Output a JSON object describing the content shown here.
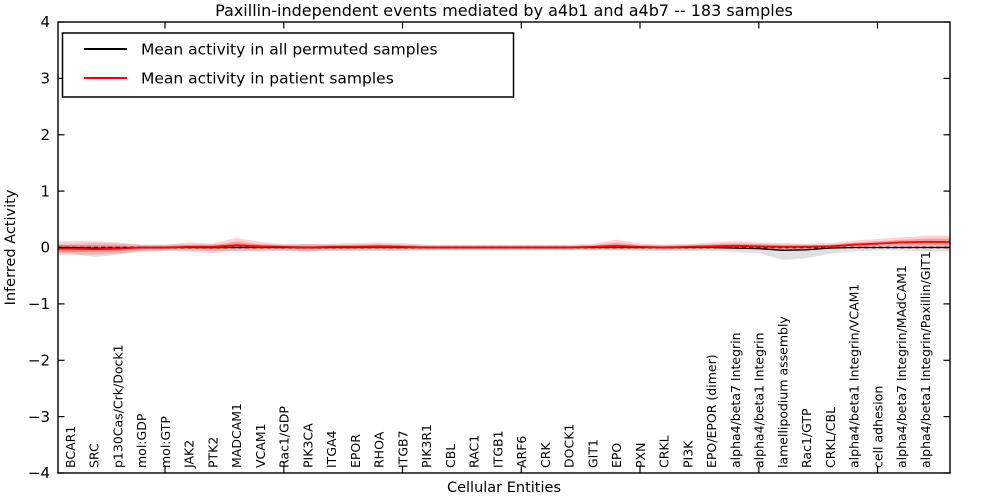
{
  "figure": {
    "title": "Paxillin-independent events mediated by a4b1 and a4b7 -- 183 samples",
    "xlabel": "Cellular Entities",
    "ylabel": "Inferred Activity"
  },
  "chart_data": {
    "type": "line",
    "title": "Paxillin-independent events mediated by a4b1 and a4b7 -- 183 samples",
    "xlabel": "Cellular Entities",
    "ylabel": "Inferred Activity",
    "ylim": [
      -4,
      4
    ],
    "ytick_labels": [
      "4",
      "3",
      "2",
      "1",
      "0",
      "−1",
      "−2",
      "−3",
      "−4"
    ],
    "ytick_values": [
      4,
      3,
      2,
      1,
      0,
      -1,
      -2,
      -3,
      -4
    ],
    "xtick_entity_indices": [
      4,
      9,
      14,
      19,
      24,
      29,
      34
    ],
    "grid": false,
    "tick_direction": "in",
    "legend": {
      "position": "upper left",
      "entries": [
        {
          "label": "Mean activity in all permuted samples",
          "color": "#000000"
        },
        {
          "label": "Mean activity in patient samples",
          "color": "#ff0000"
        }
      ]
    },
    "entities": [
      "BCAR1",
      "SRC",
      "p130Cas/Crk/Dock1",
      "mol:GDP",
      "mol:GTP",
      "JAK2",
      "PTK2",
      "MADCAM1",
      "VCAM1",
      "Rac1/GDP",
      "PIK3CA",
      "ITGA4",
      "EPOR",
      "RHOA",
      "ITGB7",
      "PIK3R1",
      "CBL",
      "RAC1",
      "ITGB1",
      "ARF6",
      "CRK",
      "DOCK1",
      "GIT1",
      "EPO",
      "PXN",
      "CRKL",
      "PI3K",
      "EPO/EPOR (dimer)",
      "alpha4/beta7 Integrin",
      "alpha4/beta1 Integrin",
      "lamellipodium assembly",
      "Rac1/GTP",
      "CRKL/CBL",
      "alpha4/beta1 Integrin/VCAM1",
      "cell adhesion",
      "alpha4/beta7 Integrin/MAdCAM1",
      "alpha4/beta1 Integrin/Paxillin/GIT1"
    ],
    "series": [
      {
        "name": "Mean activity in all permuted samples",
        "color": "#000000",
        "values": [
          0.0,
          -0.01,
          -0.01,
          0.0,
          0.0,
          0.0,
          0.0,
          0.0,
          0.0,
          0.0,
          0.0,
          0.0,
          0.0,
          0.0,
          0.0,
          0.0,
          0.0,
          0.0,
          0.0,
          0.0,
          0.0,
          0.0,
          0.0,
          0.0,
          0.0,
          0.0,
          0.0,
          0.0,
          -0.01,
          -0.02,
          -0.05,
          -0.04,
          -0.01,
          0.0,
          0.0,
          0.0,
          0.0
        ]
      },
      {
        "name": "Mean activity in patient samples",
        "color": "#ff0000",
        "values": [
          -0.02,
          -0.03,
          -0.02,
          0.0,
          0.0,
          0.01,
          0.01,
          0.04,
          0.02,
          0.01,
          0.0,
          0.01,
          0.01,
          0.02,
          0.01,
          0.0,
          0.0,
          0.0,
          0.0,
          0.0,
          0.0,
          0.0,
          0.01,
          0.03,
          0.01,
          0.0,
          0.01,
          0.02,
          0.03,
          0.02,
          0.01,
          0.01,
          0.02,
          0.05,
          0.07,
          0.09,
          0.1
        ]
      }
    ],
    "bands": [
      {
        "name": "permuted-range",
        "color": "rgba(0,0,0,0.12)",
        "upper": [
          0.06,
          0.08,
          0.07,
          0.05,
          0.05,
          0.05,
          0.06,
          0.05,
          0.05,
          0.05,
          0.06,
          0.05,
          0.05,
          0.05,
          0.05,
          0.04,
          0.04,
          0.04,
          0.04,
          0.04,
          0.04,
          0.04,
          0.04,
          0.04,
          0.04,
          0.05,
          0.05,
          0.05,
          0.05,
          0.06,
          0.05,
          0.05,
          0.05,
          0.04,
          0.04,
          0.05,
          0.06
        ],
        "lower": [
          -0.1,
          -0.17,
          -0.13,
          -0.08,
          -0.06,
          -0.08,
          -0.1,
          -0.06,
          -0.08,
          -0.06,
          -0.08,
          -0.06,
          -0.07,
          -0.06,
          -0.06,
          -0.05,
          -0.05,
          -0.05,
          -0.05,
          -0.05,
          -0.05,
          -0.05,
          -0.05,
          -0.05,
          -0.06,
          -0.06,
          -0.06,
          -0.06,
          -0.08,
          -0.1,
          -0.22,
          -0.19,
          -0.11,
          -0.07,
          -0.05,
          -0.05,
          -0.07
        ]
      },
      {
        "name": "patient-range",
        "color": "rgba(255,45,45,0.22)",
        "upper": [
          0.11,
          0.11,
          0.09,
          0.05,
          0.05,
          0.09,
          0.07,
          0.17,
          0.1,
          0.06,
          0.06,
          0.07,
          0.08,
          0.09,
          0.08,
          0.05,
          0.05,
          0.05,
          0.05,
          0.05,
          0.05,
          0.05,
          0.06,
          0.14,
          0.07,
          0.05,
          0.06,
          0.09,
          0.11,
          0.09,
          0.08,
          0.07,
          0.08,
          0.12,
          0.15,
          0.18,
          0.21
        ],
        "lower": [
          -0.13,
          -0.13,
          -0.11,
          -0.06,
          -0.05,
          -0.05,
          -0.07,
          -0.06,
          -0.05,
          -0.05,
          -0.06,
          -0.05,
          -0.05,
          -0.05,
          -0.05,
          -0.04,
          -0.04,
          -0.04,
          -0.04,
          -0.04,
          -0.04,
          -0.04,
          -0.04,
          -0.05,
          -0.04,
          -0.04,
          -0.04,
          -0.03,
          -0.03,
          -0.04,
          -0.05,
          -0.04,
          -0.01,
          0.01,
          0.02,
          0.02,
          0.01
        ]
      }
    ],
    "zero_line": {
      "value": 0,
      "style": "dashed",
      "color": "#000000"
    }
  }
}
